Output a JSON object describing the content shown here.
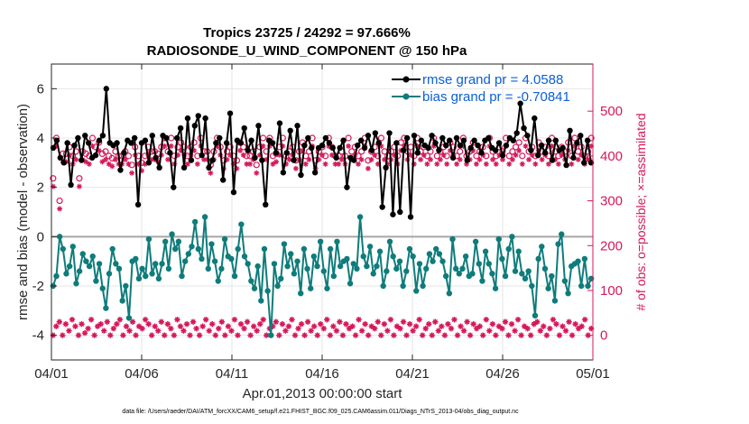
{
  "chart_data": {
    "type": "line",
    "title_line1": "Tropics 23725 / 24292 = 97.666%",
    "title_line2": "RADIOSONDE_U_WIND_COMPONENT @ 150 hPa",
    "xlabel": "Apr.01,2013 00:00:00 start",
    "ylabel_left": "rmse and bias (model - observation)",
    "ylabel_right": "# of obs: o=possible; ×=assimilated",
    "footer": "data file: /Users/raeder/DAI/ATM_forcXX/CAM6_setup/f.e21.FHIST_BGC.f09_025.CAM6assim.011/Diags_NTrS_2013-04/obs_diag_output.nc",
    "x_tick_labels": [
      "04/01",
      "04/06",
      "04/11",
      "04/16",
      "04/21",
      "04/26",
      "05/01"
    ],
    "x_tick_values": [
      0,
      5,
      10,
      15,
      20,
      25,
      30
    ],
    "xlim": [
      0,
      30
    ],
    "y_left_ticks": [
      -4,
      -2,
      0,
      2,
      4,
      6
    ],
    "y_left_tick_labels": [
      "-4",
      "-2",
      "0",
      "2",
      "4",
      "6"
    ],
    "ylim_left": [
      -5,
      7
    ],
    "y_right_ticks": [
      0,
      100,
      200,
      300,
      400,
      500
    ],
    "y_right_tick_labels": [
      "0",
      "100",
      "200",
      "300",
      "400",
      "500"
    ],
    "ylim_right": [
      -55,
      605
    ],
    "grid": true,
    "legend_position": "top-right",
    "colors": {
      "rmse": "#000000",
      "bias": "#0e7c7b",
      "obs": "#d6185a",
      "zero_line": "#a6a6a6",
      "legend_text": "#0b5fd6"
    },
    "series": [
      {
        "name": "rmse grand pr = 4.0588",
        "axis": "left",
        "marker": "circle",
        "values": [
          3.6,
          3.9,
          3.2,
          3.0,
          3.8,
          2.1,
          3.7,
          4.0,
          3.1,
          4.1,
          3.8,
          3.2,
          3.3,
          3.9,
          4.1,
          6.0,
          3.8,
          3.7,
          3.8,
          2.7,
          3.4,
          3.9,
          3.8,
          4.0,
          1.3,
          3.8,
          3.9,
          3.0,
          4.1,
          3.2,
          2.8,
          4.1,
          4.0,
          3.4,
          2.0,
          4.0,
          4.4,
          2.8,
          4.8,
          3.1,
          4.5,
          4.9,
          3.3,
          4.8,
          2.8,
          3.1,
          3.8,
          4.0,
          2.3,
          3.8,
          5.0,
          1.8,
          3.9,
          3.8,
          4.4,
          3.5,
          3.9,
          3.2,
          4.5,
          3.1,
          1.3,
          3.9,
          3.8,
          3.4,
          4.6,
          2.6,
          3.4,
          4.3,
          3.1,
          4.5,
          2.5,
          3.7,
          4.0,
          3.6,
          2.6,
          3.6,
          3.7,
          4.0,
          3.8,
          3.6,
          3.2,
          3.6,
          3.9,
          2.0,
          3.2,
          3.1,
          3.7,
          3.9,
          3.6,
          4.1,
          3.5,
          4.2,
          3.8,
          1.2,
          2.8,
          4.2,
          0.9,
          3.8,
          1.0,
          3.5,
          4.0,
          0.8,
          4.1,
          3.4,
          3.9,
          3.7,
          3.6,
          4.1,
          3.8,
          3.5,
          4.0,
          3.7,
          3.9,
          3.2,
          4.0,
          3.7,
          3.9,
          3.1,
          3.6,
          3.9,
          3.7,
          3.4,
          3.9,
          4.0,
          3.6,
          3.5,
          3.8,
          3.3,
          3.7,
          4.0,
          3.9,
          4.2,
          5.4,
          4.4,
          4.1,
          3.5,
          4.8,
          3.3,
          3.7,
          3.4,
          3.9,
          3.1,
          3.9,
          3.5,
          3.6,
          2.9,
          4.3,
          3.2,
          3.8,
          4.1,
          3.0,
          3.9,
          3.0
        ]
      },
      {
        "name": "bias grand pr = -0.70841",
        "axis": "left",
        "marker": "circle",
        "values": [
          -2.0,
          -1.6,
          0.0,
          -0.5,
          -1.5,
          -1.2,
          -0.4,
          -1.9,
          -1.4,
          -0.7,
          -1.0,
          -1.2,
          -0.8,
          -1.8,
          -1.1,
          -2.1,
          -2.9,
          -1.5,
          -0.5,
          -1.1,
          -1.3,
          -2.6,
          -2.0,
          -3.3,
          -1.0,
          -0.9,
          -1.7,
          -1.3,
          -1.6,
          -0.1,
          -1.5,
          -1.1,
          -1.7,
          -1.1,
          -0.2,
          -1.3,
          0.1,
          -0.5,
          -0.2,
          -1.6,
          -1.0,
          -0.7,
          -0.4,
          0.6,
          -0.5,
          -0.9,
          0.8,
          -1.3,
          -0.3,
          -1.0,
          -1.8,
          -1.3,
          -0.1,
          -0.8,
          -0.9,
          -1.6,
          -0.5,
          0.5,
          -0.8,
          -1.1,
          -1.8,
          -2.1,
          -1.2,
          -2.6,
          -0.5,
          -2.2,
          -4.0,
          -1.1,
          -2.0,
          -1.7,
          -0.3,
          -1.2,
          -0.7,
          -1.5,
          -1.0,
          -2.3,
          -0.5,
          -1.3,
          -2.1,
          -0.8,
          -1.2,
          -0.2,
          -1.4,
          -2.1,
          -0.5,
          -1.6,
          -0.2,
          -1.2,
          -1.0,
          -0.9,
          -1.9,
          -1.1,
          -1.3,
          0.8,
          -0.8,
          -1.2,
          -0.4,
          -1.5,
          -1.2,
          -0.6,
          -2.0,
          -1.4,
          -0.2,
          -0.8,
          -1.3,
          -1.0,
          -2.0,
          -1.4,
          -0.5,
          -0.8,
          -2.2,
          -1.1,
          -2.0,
          -1.3,
          -0.7,
          -1.0,
          -0.5,
          -0.7,
          -1.0,
          -1.6,
          -2.3,
          -0.1,
          -1.3,
          -1.5,
          -1.3,
          -0.8,
          -1.6,
          -1.5,
          -0.2,
          -1.1,
          -1.8,
          -0.6,
          -1.1,
          -1.5,
          -2.1,
          -0.1,
          -0.9,
          -1.6,
          -0.5,
          0.0,
          -1.4,
          -0.6,
          -1.5,
          -1.7,
          -1.4,
          -2.0,
          -3.2,
          -0.9,
          -0.4,
          -1.3,
          -2.1,
          -1.6,
          -2.6,
          -0.3,
          0.1,
          -1.8,
          -2.3,
          -1.2,
          -1.1,
          -1.0,
          -2.0,
          -0.9,
          -2.0,
          -1.7
        ]
      }
    ],
    "obs_possible": {
      "name": "possible",
      "axis": "right",
      "marker": "circle-open",
      "values": [
        350,
        440,
        300,
        405,
        405,
        420,
        400,
        410,
        350,
        410,
        405,
        400,
        440,
        420,
        430,
        405,
        410,
        400,
        395,
        410,
        400,
        400,
        410,
        400,
        380,
        420,
        400,
        385,
        400,
        420,
        410,
        410,
        405,
        420,
        440,
        410,
        440,
        400,
        420,
        430,
        420,
        400,
        420,
        430,
        400,
        440,
        410,
        410,
        380,
        410,
        440,
        420,
        390,
        410,
        420,
        400,
        390,
        430,
        420,
        400,
        400,
        410,
        380,
        420,
        440,
        410,
        440,
        400,
        405,
        420,
        440,
        400,
        410,
        420,
        390,
        410,
        430,
        400,
        410,
        440,
        390,
        410,
        420,
        400,
        440,
        420,
        400,
        400,
        410,
        400,
        440,
        410,
        420,
        400,
        410,
        440,
        390,
        410,
        420,
        400,
        440,
        410,
        400,
        410,
        420,
        400,
        430,
        440,
        410,
        420,
        400,
        440,
        410,
        420,
        400,
        410,
        440,
        400,
        410,
        420,
        400,
        430,
        420,
        400,
        410,
        440,
        400,
        410,
        430,
        400,
        410,
        420,
        400,
        440,
        410,
        400,
        420,
        410,
        440,
        400,
        410,
        420,
        430,
        400,
        440,
        410,
        420,
        400,
        430,
        410,
        420,
        400,
        440,
        410,
        400,
        420,
        410,
        430,
        400,
        440,
        410,
        420,
        400,
        410,
        440
      ]
    },
    "obs_assimilated": {
      "name": "assimilated",
      "axis": "right",
      "marker": "asterisk",
      "values": [
        0,
        20,
        30,
        0,
        25,
        10,
        35,
        20,
        0,
        25,
        5,
        15,
        35,
        0,
        20,
        25,
        10,
        30,
        0,
        15,
        25,
        35,
        0,
        20,
        10,
        30,
        0,
        20,
        15,
        35,
        25,
        0,
        20,
        10,
        30,
        0,
        25,
        15,
        0,
        35,
        20,
        10,
        25,
        0,
        30,
        15,
        0,
        20,
        35,
        10,
        25,
        0,
        15,
        30,
        0,
        20,
        10,
        35,
        0,
        25,
        15,
        30,
        0,
        20,
        10,
        25,
        35,
        0,
        15,
        20,
        30,
        0,
        25,
        10,
        20,
        35,
        0,
        15,
        25,
        0,
        30,
        10,
        20,
        0,
        25,
        15,
        35,
        0,
        20,
        10,
        30,
        0,
        25,
        15,
        20,
        0,
        35,
        10,
        25,
        0,
        20,
        15,
        30,
        0,
        25,
        10,
        35,
        0,
        20,
        15,
        30,
        0,
        25,
        10,
        20,
        35,
        0,
        15,
        25,
        0,
        30,
        10,
        20,
        0,
        25,
        15,
        35,
        0,
        20,
        10,
        30,
        0,
        25,
        15,
        20,
        0,
        35,
        10,
        25,
        0,
        20,
        15,
        30,
        0,
        25,
        10,
        35,
        0,
        20,
        15,
        0,
        25,
        30,
        10,
        20,
        0,
        15,
        35,
        25,
        0,
        20,
        10,
        30,
        0,
        25,
        15,
        20,
        35,
        0,
        15
      ]
    }
  }
}
